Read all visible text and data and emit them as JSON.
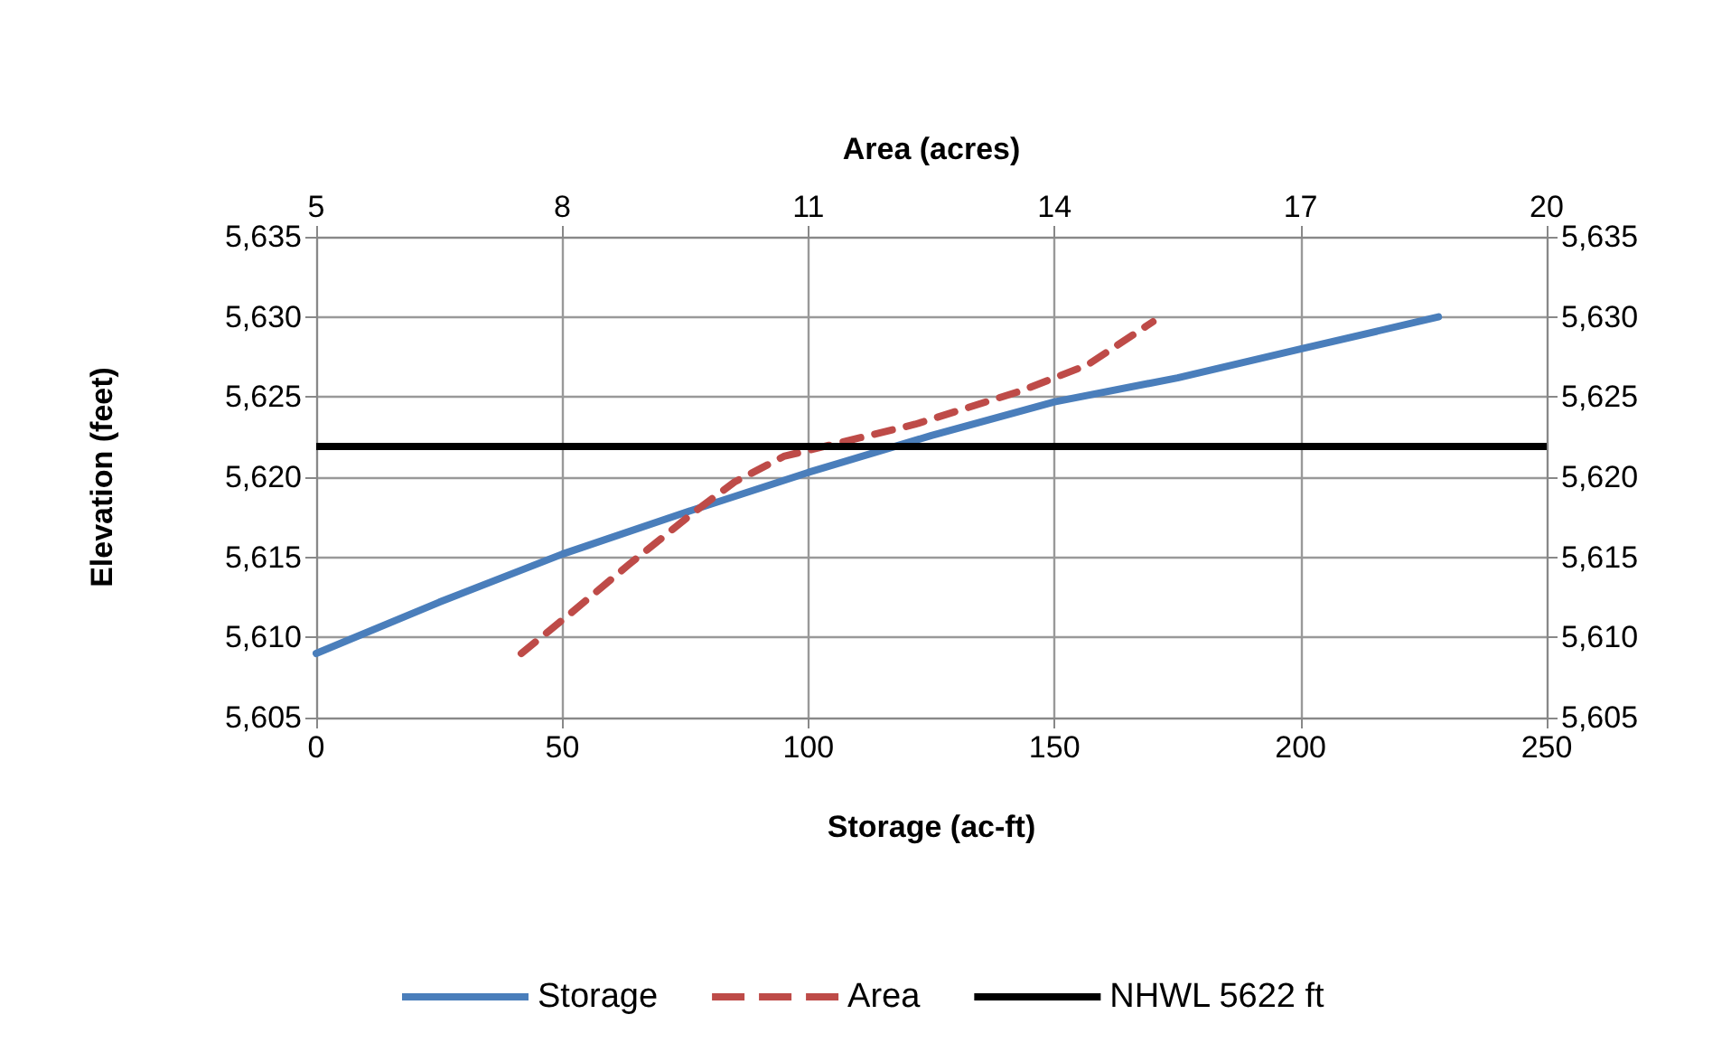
{
  "chart_data": {
    "type": "line",
    "xlabel": "Storage (ac-ft)",
    "x2label": "Area (acres)",
    "ylabel": "Elevation (feet)",
    "xlim": [
      0,
      250
    ],
    "xticks": [
      0,
      50,
      100,
      150,
      200,
      250
    ],
    "x2lim": [
      5,
      20
    ],
    "x2ticks": [
      5,
      8,
      11,
      14,
      17,
      20
    ],
    "ylim": [
      5605,
      5635
    ],
    "yticks": [
      {
        "value": 5605,
        "label": "5,605"
      },
      {
        "value": 5610,
        "label": "5,610"
      },
      {
        "value": 5615,
        "label": "5,615"
      },
      {
        "value": 5620,
        "label": "5,620"
      },
      {
        "value": 5625,
        "label": "5,625"
      },
      {
        "value": 5630,
        "label": "5,630"
      },
      {
        "value": 5635,
        "label": "5,635"
      }
    ],
    "y2lim": [
      5605,
      5635
    ],
    "y2ticks": [
      {
        "value": 5605,
        "label": "5,605"
      },
      {
        "value": 5610,
        "label": "5,610"
      },
      {
        "value": 5615,
        "label": "5,615"
      },
      {
        "value": 5620,
        "label": "5,620"
      },
      {
        "value": 5625,
        "label": "5,625"
      },
      {
        "value": 5630,
        "label": "5,630"
      },
      {
        "value": 5635,
        "label": "5,635"
      }
    ],
    "series": [
      {
        "name": "Storage",
        "color": "#4a7ebb",
        "line_style": "solid",
        "x": [
          0,
          25,
          50,
          75,
          100,
          125,
          150,
          175,
          200,
          228
        ],
        "values": [
          5609,
          5612.2,
          5615.2,
          5617.8,
          5620.3,
          5622.6,
          5624.7,
          5626.2,
          5628,
          5630
        ]
      },
      {
        "name": "Area",
        "color": "#be4b48",
        "line_style": "dashed",
        "axis": "x2",
        "x": [
          7.5,
          8.1,
          8.8,
          9.6,
          10.1,
          10.7,
          12.3,
          13.6,
          14.4,
          15.2
        ],
        "values": [
          5609,
          5611.5,
          5614.5,
          5617.8,
          5619.7,
          5621.3,
          5623.3,
          5625.4,
          5627,
          5629.7
        ]
      }
    ],
    "ref_lines": [
      {
        "axis": "y",
        "value": 5622,
        "label": "NHWL 5622 ft",
        "color": "#000000",
        "line_style": "solid"
      }
    ],
    "grid": true,
    "legend": "bottom",
    "marker": "none"
  }
}
